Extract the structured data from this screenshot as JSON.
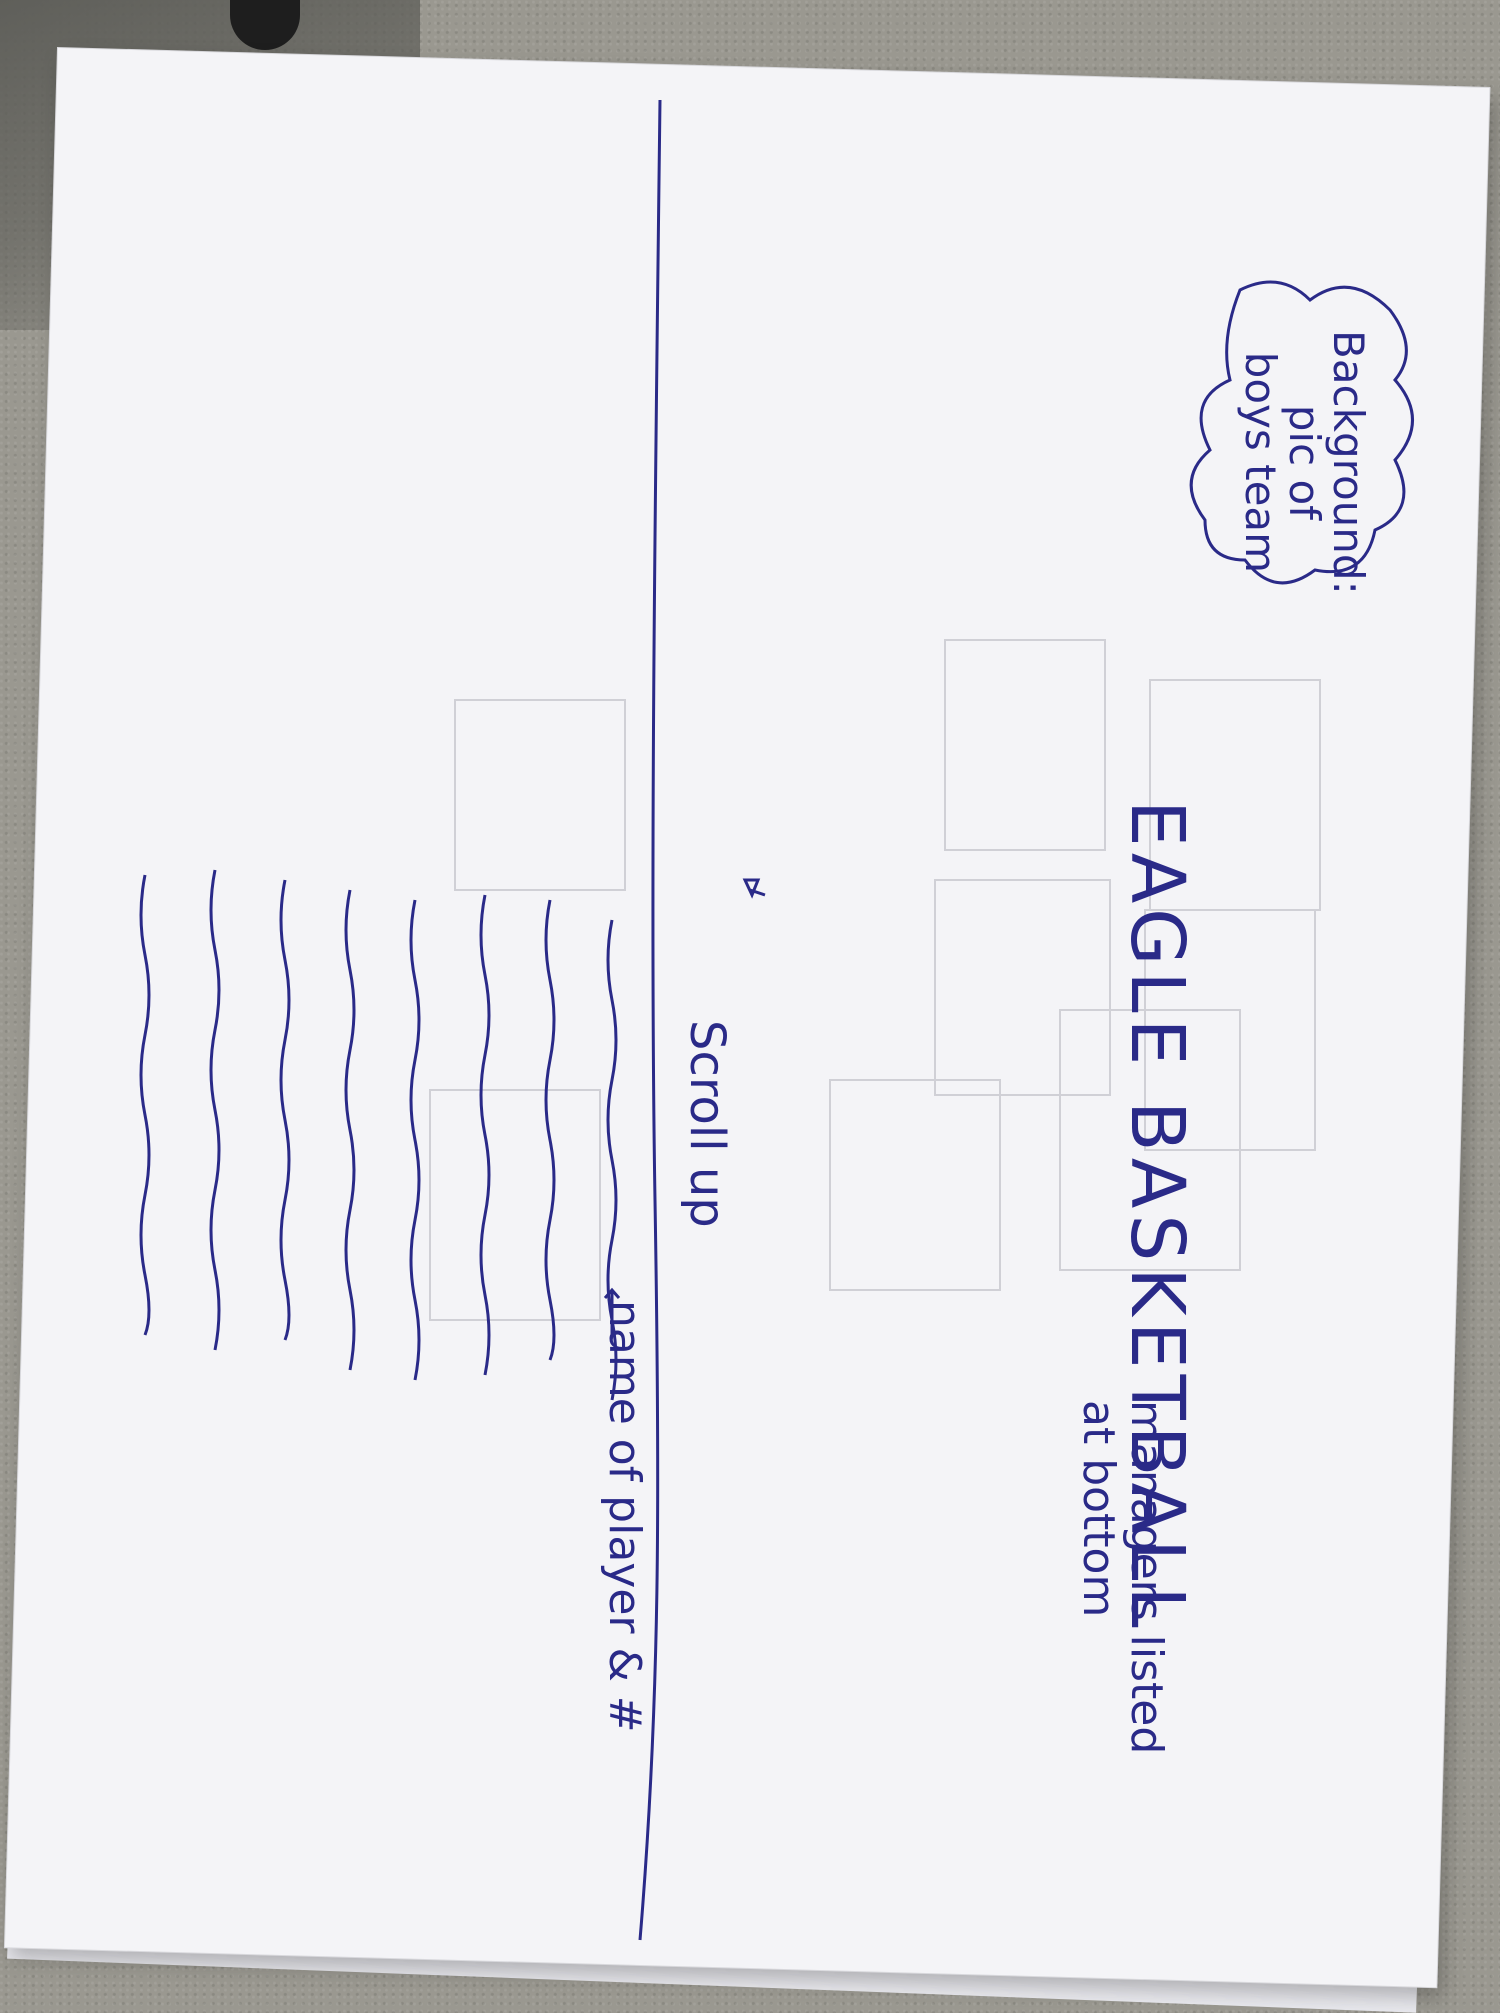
{
  "sketch": {
    "cloud_note": [
      "Background:",
      "pic of",
      "boys team"
    ],
    "title": "EAGLE BASKETBALL",
    "scroll_hint": "Scroll up",
    "player_note": "name of player & #",
    "managers_note": [
      "managers listed",
      "at bottom"
    ]
  },
  "colors": {
    "ink": "#2a2a88",
    "paper": "#f4f4f7",
    "table": "#9a9890"
  }
}
